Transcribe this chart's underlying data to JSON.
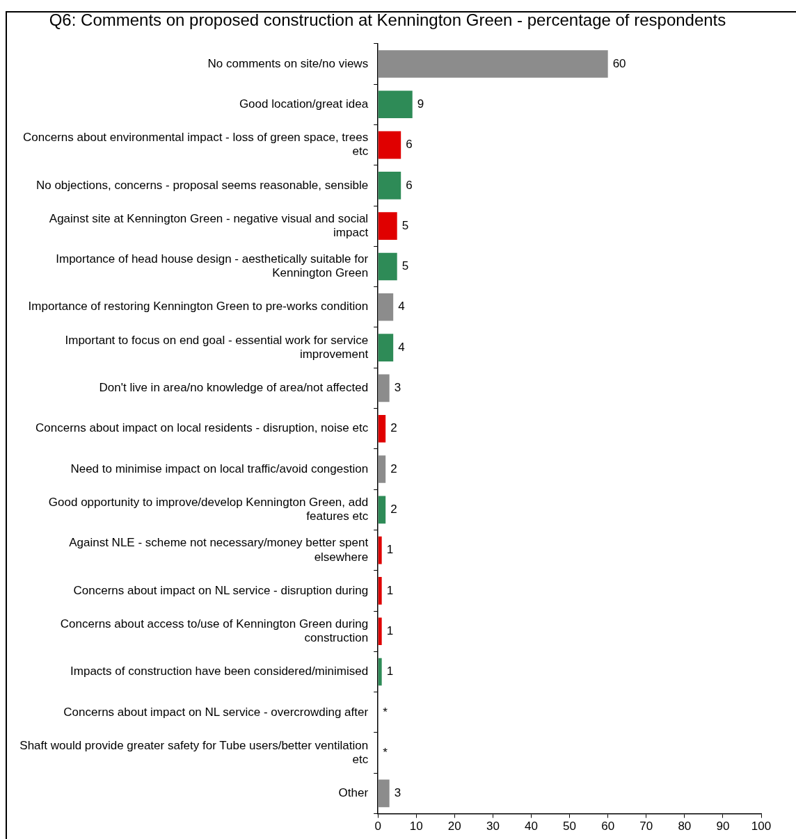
{
  "chart_data": {
    "type": "bar",
    "orientation": "horizontal",
    "title": "Q6: Comments on proposed construction at Kennington Green - percentage of respondents",
    "categories": [
      "No comments on site/no views",
      "Good location/great idea",
      "Concerns about environmental impact - loss of green space, trees etc",
      "No objections, concerns - proposal seems reasonable, sensible",
      "Against site at Kennington Green - negative visual and social impact",
      "Importance of head house design - aesthetically suitable for Kennington Green",
      "Importance of restoring Kennington Green to pre-works condition",
      "Important to focus on end goal - essential work for service improvement",
      "Don't live in area/no knowledge of area/not affected",
      "Concerns about impact on local residents - disruption, noise etc",
      "Need to minimise impact on local traffic/avoid congestion",
      "Good opportunity to improve/develop Kennington Green, add features etc",
      "Against NLE - scheme not necessary/money better spent elsewhere",
      "Concerns about impact on NL service - disruption during",
      "Concerns about access to/use of Kennington Green during construction",
      "Impacts of construction have been considered/minimised",
      "Concerns about impact on NL service - overcrowding after",
      "Shaft would provide greater safety for Tube users/better ventilation etc",
      "Other"
    ],
    "values": [
      60,
      9,
      6,
      6,
      5,
      5,
      4,
      4,
      3,
      2,
      2,
      2,
      1,
      1,
      1,
      1,
      0,
      0,
      3
    ],
    "value_labels": [
      "60",
      "9",
      "6",
      "6",
      "5",
      "5",
      "4",
      "4",
      "3",
      "2",
      "2",
      "2",
      "1",
      "1",
      "1",
      "1",
      "*",
      "*",
      "3"
    ],
    "colors": [
      "#8c8c8c",
      "#2e8b57",
      "#e00000",
      "#2e8b57",
      "#e00000",
      "#2e8b57",
      "#8c8c8c",
      "#2e8b57",
      "#8c8c8c",
      "#e00000",
      "#8c8c8c",
      "#2e8b57",
      "#e00000",
      "#e00000",
      "#e00000",
      "#2e8b57",
      "#8c8c8c",
      "#2e8b57",
      "#8c8c8c"
    ],
    "xlim": [
      0,
      100
    ],
    "xticks": [
      0,
      10,
      20,
      30,
      40,
      50,
      60,
      70,
      80,
      90,
      100
    ],
    "grid": false,
    "legend": false
  }
}
